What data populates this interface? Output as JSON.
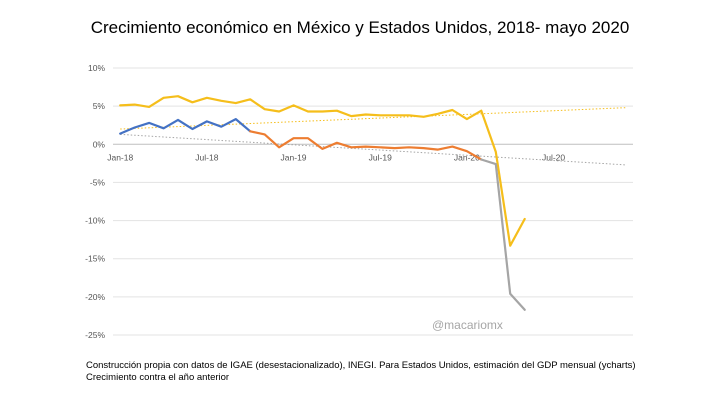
{
  "chart_data": {
    "type": "line",
    "title": "Crecimiento económico en México y Estados Unidos, 2018- mayo 2020",
    "y_ticks": [
      "10%",
      "5%",
      "0%",
      "-5%",
      "-10%",
      "-15%",
      "-20%",
      "-25%"
    ],
    "x_ticks": [
      "Jan-18",
      "Jul-18",
      "Jan-19",
      "Jul-19",
      "Jan-20",
      "Jul-20"
    ],
    "ylim": [
      -25,
      10
    ],
    "x_range": [
      "Jan-18",
      "Dec-20"
    ],
    "grid": true,
    "series": [
      {
        "color": "#f5be1b",
        "points": [
          [
            "Jan-18",
            5.1
          ],
          [
            "Feb-18",
            5.2
          ],
          [
            "Mar-18",
            4.9
          ],
          [
            "Apr-18",
            6.1
          ],
          [
            "May-18",
            6.3
          ],
          [
            "Jun-18",
            5.5
          ],
          [
            "Jul-18",
            6.1
          ],
          [
            "Aug-18",
            5.7
          ],
          [
            "Sep-18",
            5.4
          ],
          [
            "Oct-18",
            5.9
          ],
          [
            "Nov-18",
            4.6
          ],
          [
            "Dec-18",
            4.3
          ],
          [
            "Jan-19",
            5.1
          ],
          [
            "Feb-19",
            4.3
          ],
          [
            "Mar-19",
            4.3
          ],
          [
            "Apr-19",
            4.4
          ],
          [
            "May-19",
            3.7
          ],
          [
            "Jun-19",
            3.9
          ],
          [
            "Jul-19",
            3.8
          ],
          [
            "Aug-19",
            3.8
          ],
          [
            "Sep-19",
            3.8
          ],
          [
            "Oct-19",
            3.6
          ],
          [
            "Nov-19",
            4.0
          ],
          [
            "Dec-19",
            4.5
          ],
          [
            "Jan-20",
            3.3
          ],
          [
            "Feb-20",
            4.4
          ],
          [
            "Mar-20",
            -1.0
          ],
          [
            "Apr-20",
            -13.3
          ],
          [
            "May-20",
            -9.8
          ]
        ]
      },
      {
        "color": "#4472c4",
        "points": [
          [
            "Jan-18",
            1.4
          ],
          [
            "Feb-18",
            2.2
          ],
          [
            "Mar-18",
            2.8
          ],
          [
            "Apr-18",
            2.1
          ],
          [
            "May-18",
            3.2
          ],
          [
            "Jun-18",
            2.0
          ],
          [
            "Jul-18",
            3.0
          ],
          [
            "Aug-18",
            2.3
          ],
          [
            "Sep-18",
            3.3
          ],
          [
            "Oct-18",
            1.7
          ]
        ]
      },
      {
        "color": "#ed7d31",
        "points": [
          [
            "Oct-18",
            1.7
          ],
          [
            "Nov-18",
            1.3
          ],
          [
            "Dec-18",
            -0.4
          ],
          [
            "Jan-19",
            0.8
          ],
          [
            "Feb-19",
            0.8
          ],
          [
            "Mar-19",
            -0.6
          ],
          [
            "Apr-19",
            0.2
          ],
          [
            "May-19",
            -0.4
          ],
          [
            "Jun-19",
            -0.3
          ],
          [
            "Jul-19",
            -0.4
          ],
          [
            "Aug-19",
            -0.5
          ],
          [
            "Sep-19",
            -0.4
          ],
          [
            "Oct-19",
            -0.5
          ],
          [
            "Nov-19",
            -0.7
          ],
          [
            "Dec-19",
            -0.3
          ],
          [
            "Jan-20",
            -0.9
          ],
          [
            "Feb-20",
            -2.0
          ]
        ]
      },
      {
        "color": "#a5a5a5",
        "points": [
          [
            "Feb-20",
            -2.0
          ],
          [
            "Mar-20",
            -2.6
          ],
          [
            "Apr-20",
            -19.6
          ],
          [
            "May-20",
            -21.7
          ]
        ]
      }
    ],
    "trendlines": [
      {
        "color": "#f5be1b",
        "from": [
          "Jan-18",
          2.0
        ],
        "to": [
          "Dec-20",
          4.8
        ]
      },
      {
        "color": "#a5a5a5",
        "from": [
          "Jan-18",
          1.3
        ],
        "to": [
          "Dec-20",
          -2.7
        ]
      }
    ]
  },
  "watermark": "@macariomx",
  "footer": {
    "line1": "Construcción propia con datos de IGAE (desestacionalizado), INEGI. Para Estados Unidos, estimación del GDP mensual (ycharts)",
    "line2": "Crecimiento contra el año anterior"
  }
}
